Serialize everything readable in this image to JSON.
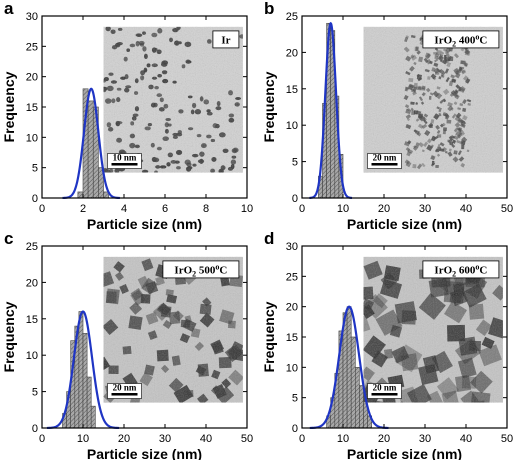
{
  "chart_data": [
    {
      "type": "bar",
      "panel": "a",
      "xlabel": "Particle size (nm)",
      "ylabel": "Frequency",
      "xlim": [
        0,
        10
      ],
      "ylim": [
        0,
        30
      ],
      "xticks": [
        "0",
        "2",
        "4",
        "6",
        "8",
        "10"
      ],
      "yticks": [
        "0",
        "5",
        "10",
        "15",
        "20",
        "25",
        "30"
      ],
      "bin_width": 0.25,
      "bins": [
        {
          "x": 1.875,
          "y": 1
        },
        {
          "x": 2.125,
          "y": 18
        },
        {
          "x": 2.375,
          "y": 16
        },
        {
          "x": 2.625,
          "y": 15
        },
        {
          "x": 2.875,
          "y": 5
        },
        {
          "x": 3.125,
          "y": 1
        }
      ],
      "fit": {
        "type": "gaussian",
        "mean": 2.4,
        "sigma": 0.35,
        "amplitude": 18
      },
      "inset_label": {
        "main": "Ir",
        "sub": "",
        "sup": "",
        "suffix": ""
      },
      "scale_bar": "10 nm",
      "grid": false
    },
    {
      "type": "bar",
      "panel": "b",
      "xlabel": "Particle size (nm)",
      "ylabel": "Frequency",
      "xlim": [
        0,
        50
      ],
      "ylim": [
        0,
        25
      ],
      "xticks": [
        "0",
        "10",
        "20",
        "30",
        "40",
        "50"
      ],
      "yticks": [
        "0",
        "5",
        "10",
        "15",
        "20",
        "25"
      ],
      "bin_width": 1,
      "bins": [
        {
          "x": 4.5,
          "y": 3
        },
        {
          "x": 5.5,
          "y": 13
        },
        {
          "x": 6.5,
          "y": 24
        },
        {
          "x": 7.5,
          "y": 23
        },
        {
          "x": 8.5,
          "y": 14
        },
        {
          "x": 9.5,
          "y": 6
        }
      ],
      "fit": {
        "type": "gaussian",
        "mean": 7.0,
        "sigma": 1.3,
        "amplitude": 24
      },
      "inset_label": {
        "main": "IrO",
        "sub": "2",
        "sup": "o",
        "suffix": " 400",
        "unit": "C"
      },
      "scale_bar": "20 nm",
      "grid": false
    },
    {
      "type": "bar",
      "panel": "c",
      "xlabel": "Particle size (nm)",
      "ylabel": "Frequency",
      "xlim": [
        0,
        50
      ],
      "ylim": [
        0,
        25
      ],
      "xticks": [
        "0",
        "10",
        "20",
        "30",
        "40",
        "50"
      ],
      "yticks": [
        "0",
        "5",
        "10",
        "15",
        "20",
        "25"
      ],
      "bin_width": 1,
      "bins": [
        {
          "x": 5.5,
          "y": 2
        },
        {
          "x": 6.5,
          "y": 5
        },
        {
          "x": 7.5,
          "y": 12
        },
        {
          "x": 8.5,
          "y": 14
        },
        {
          "x": 9.5,
          "y": 16
        },
        {
          "x": 10.5,
          "y": 13
        },
        {
          "x": 11.5,
          "y": 7
        },
        {
          "x": 12.5,
          "y": 3
        }
      ],
      "fit": {
        "type": "gaussian",
        "mean": 10.0,
        "sigma": 2.2,
        "amplitude": 16
      },
      "inset_label": {
        "main": "IrO",
        "sub": "2",
        "sup": "o",
        "suffix": " 500",
        "unit": "C"
      },
      "scale_bar": "20 nm",
      "grid": false
    },
    {
      "type": "bar",
      "panel": "d",
      "xlabel": "Particle size (nm)",
      "ylabel": "Frequency",
      "xlim": [
        0,
        50
      ],
      "ylim": [
        0,
        30
      ],
      "xticks": [
        "0",
        "10",
        "20",
        "30",
        "40",
        "50"
      ],
      "yticks": [
        "0",
        "5",
        "10",
        "15",
        "20",
        "25",
        "30"
      ],
      "bin_width": 1,
      "bins": [
        {
          "x": 6.5,
          "y": 2
        },
        {
          "x": 7.5,
          "y": 5
        },
        {
          "x": 8.5,
          "y": 9
        },
        {
          "x": 9.5,
          "y": 16
        },
        {
          "x": 10.5,
          "y": 19
        },
        {
          "x": 11.5,
          "y": 20
        },
        {
          "x": 12.5,
          "y": 15
        },
        {
          "x": 13.5,
          "y": 10
        },
        {
          "x": 14.5,
          "y": 7
        },
        {
          "x": 15.5,
          "y": 4
        },
        {
          "x": 16.5,
          "y": 2
        }
      ],
      "fit": {
        "type": "gaussian",
        "mean": 11.5,
        "sigma": 2.4,
        "amplitude": 20
      },
      "inset_label": {
        "main": "IrO",
        "sub": "2",
        "sup": "o",
        "suffix": " 600",
        "unit": "C"
      },
      "scale_bar": "20 nm",
      "grid": false
    }
  ],
  "colors": {
    "bar_fill": "#a8a8a8",
    "bar_hatch": "#555555",
    "fit_line": "#1f35c4",
    "axis": "#000000",
    "tem_background": "#c9c9c9",
    "tem_particle": "#2a2a2a"
  }
}
